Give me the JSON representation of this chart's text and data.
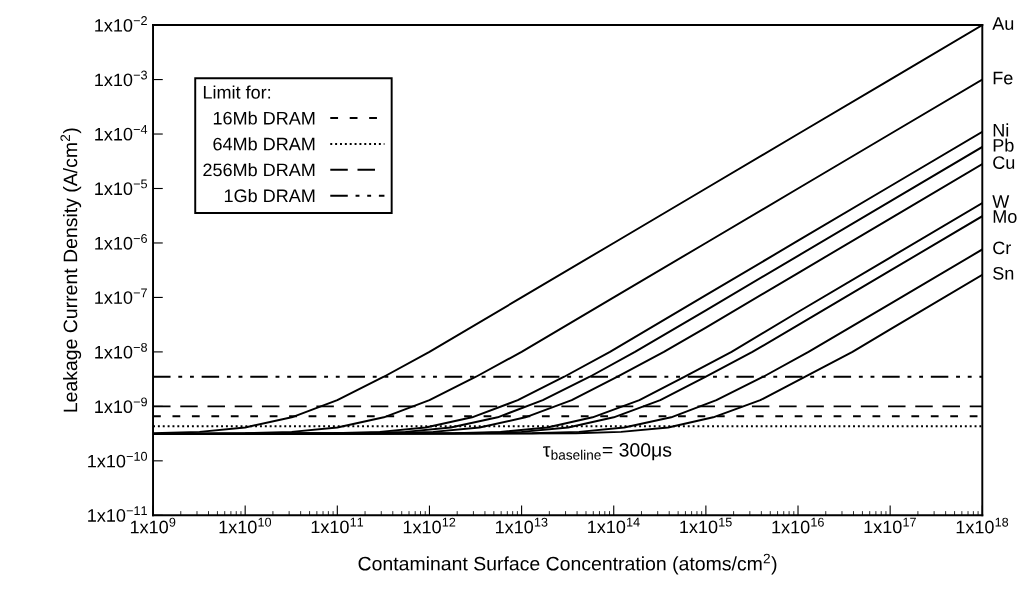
{
  "chart_data": {
    "type": "line",
    "xlabel": "Contaminant Surface Concentration (atoms/cm$^{2}$)",
    "ylabel": "Leakage Current Density (A/cm$^{2}$)",
    "log": "xy",
    "grid": false,
    "marker": "none",
    "line_style": "solid",
    "legend": "top left",
    "legend_title": "Limit for:",
    "xlim": [
      1000000000.0,
      1e+18
    ],
    "ylim": [
      1e-11,
      0.01
    ],
    "xticks": [
      {
        "value": 1000000000.0,
        "label": "1x10$^{9}$"
      },
      {
        "value": 10000000000.0,
        "label": "1x10$^{10}$"
      },
      {
        "value": 100000000000.0,
        "label": "1x10$^{11}$"
      },
      {
        "value": 1000000000000.0,
        "label": "1x10$^{12}$"
      },
      {
        "value": 10000000000000.0,
        "label": "1x10$^{13}$"
      },
      {
        "value": 100000000000000.0,
        "label": "1x10$^{14}$"
      },
      {
        "value": 1000000000000000.0,
        "label": "1x10$^{15}$"
      },
      {
        "value": 1e+16,
        "label": "1x10$^{16}$"
      },
      {
        "value": 1e+17,
        "label": "1x10$^{17}$"
      },
      {
        "value": 1e+18,
        "label": "1x10$^{18}$"
      }
    ],
    "yticks": [
      {
        "value": 1e-11,
        "label": "1x10$^{−11}$"
      },
      {
        "value": 1e-10,
        "label": "1x10$^{−10}$"
      },
      {
        "value": 1e-09,
        "label": "1x10$^{−9}$"
      },
      {
        "value": 1e-08,
        "label": "1x10$^{−8}$"
      },
      {
        "value": 1e-07,
        "label": "1x10$^{−7}$"
      },
      {
        "value": 1e-06,
        "label": "1x10$^{−6}$"
      },
      {
        "value": 1e-05,
        "label": "1x10$^{−5}$"
      },
      {
        "value": 0.0001,
        "label": "1x10$^{−4}$"
      },
      {
        "value": 0.001,
        "label": "1x10$^{−3}$"
      },
      {
        "value": 0.01,
        "label": "1x10$^{−2}$"
      }
    ],
    "series": [
      {
        "name": "Au",
        "color": "#000000",
        "x": [
          1000000000.0,
          3200000000.0,
          10000000000.0,
          32000000000.0,
          100000000000.0,
          320000000000.0,
          1000000000000.0,
          10000000000000.0,
          100000000000000.0,
          1000000000000000.0,
          1e+16,
          1e+17,
          1e+18
        ],
        "values": [
          3.2e-10,
          3.4e-10,
          4.1e-10,
          6.3e-10,
          1.3e-09,
          3.5e-09,
          1e-08,
          1e-07,
          1e-06,
          1e-05,
          0.0001,
          0.001,
          0.01
        ]
      },
      {
        "name": "Fe",
        "color": "#000000",
        "x": [
          1000000000.0,
          10000000000.0,
          32000000000.0,
          100000000000.0,
          320000000000.0,
          1000000000000.0,
          3200000000000.0,
          10000000000000.0,
          100000000000000.0,
          1000000000000000.0,
          1e+16,
          1e+17,
          1e+18
        ],
        "values": [
          3.1e-10,
          3.2e-10,
          3.4e-10,
          4.1e-10,
          6.3e-10,
          1.3e-09,
          3.5e-09,
          1e-08,
          1e-07,
          1e-06,
          1e-05,
          0.0001,
          0.001
        ]
      },
      {
        "name": "Ni",
        "color": "#000000",
        "x": [
          1000000000.0,
          91000000000.0,
          290000000000.0,
          910000000000.0,
          2900000000000.0,
          9100000000000.0,
          29000000000000.0,
          91000000000000.0,
          1000000000000000.0,
          1e+16,
          1e+17,
          1e+18
        ],
        "values": [
          3.1e-10,
          3.2e-10,
          3.4e-10,
          4.1e-10,
          6.3e-10,
          1.3e-09,
          3.5e-09,
          1e-08,
          1.1e-07,
          1.1e-06,
          1.1e-05,
          0.00011
        ]
      },
      {
        "name": "Pb",
        "color": "#000000",
        "x": [
          1000000000.0,
          170000000000.0,
          550000000000.0,
          1700000000000.0,
          5500000000000.0,
          17000000000000.0,
          55000000000000.0,
          170000000000000.0,
          1000000000000000.0,
          1e+16,
          1e+17,
          1e+18
        ],
        "values": [
          3.1e-10,
          3.2e-10,
          3.4e-10,
          4.1e-10,
          6.3e-10,
          1.3e-09,
          3.5e-09,
          1e-08,
          5.8e-08,
          5.8e-07,
          5.8e-06,
          5.8e-05
        ]
      },
      {
        "name": "Cu",
        "color": "#000000",
        "x": [
          1000000000.0,
          350000000000.0,
          1100000000000.0,
          3500000000000.0,
          11000000000000.0,
          35000000000000.0,
          110000000000000.0,
          350000000000000.0,
          1000000000000000.0,
          1e+16,
          1e+17,
          1e+18
        ],
        "values": [
          3.1e-10,
          3.2e-10,
          3.4e-10,
          4.1e-10,
          6.3e-10,
          1.3e-09,
          3.5e-09,
          1e-08,
          2.8e-08,
          2.8e-07,
          2.8e-06,
          2.8e-05
        ]
      },
      {
        "name": "W",
        "color": "#000000",
        "x": [
          1000000000.0,
          1900000000000.0,
          5900000000000.0,
          19000000000000.0,
          59000000000000.0,
          190000000000000.0,
          590000000000000.0,
          1900000000000000.0,
          1e+16,
          1e+17,
          1e+18
        ],
        "values": [
          3.1e-10,
          3.2e-10,
          3.4e-10,
          4.1e-10,
          6.3e-10,
          1.3e-09,
          3.5e-09,
          1e-08,
          5.4e-08,
          5.4e-07,
          5.4e-06
        ]
      },
      {
        "name": "Mo",
        "color": "#000000",
        "x": [
          1000000000.0,
          3200000000000.0,
          10000000000000.0,
          32000000000000.0,
          100000000000000.0,
          320000000000000.0,
          1000000000000000.0,
          3200000000000000.0,
          1e+16,
          1e+17,
          1e+18
        ],
        "values": [
          3.1e-10,
          3.2e-10,
          3.4e-10,
          4.1e-10,
          6.3e-10,
          1.3e-09,
          3.5e-09,
          1e-08,
          3.1e-08,
          3.1e-07,
          3.1e-06
        ]
      },
      {
        "name": "Cr",
        "color": "#000000",
        "x": [
          1000000000.0,
          13000000000000.0,
          42000000000000.0,
          130000000000000.0,
          420000000000000.0,
          1300000000000000.0,
          4200000000000000.0,
          1.3e+16,
          1e+17,
          1e+18
        ],
        "values": [
          3.1e-10,
          3.2e-10,
          3.4e-10,
          4.1e-10,
          6.3e-10,
          1.3e-09,
          3.5e-09,
          1e-08,
          7.6e-08,
          7.6e-07
        ]
      },
      {
        "name": "Sn",
        "color": "#000000",
        "x": [
          1000000000.0,
          39000000000000.0,
          120000000000000.0,
          390000000000000.0,
          1200000000000000.0,
          3900000000000000.0,
          1.2e+16,
          3.9e+16,
          1e+17,
          1e+18
        ],
        "values": [
          3.1e-10,
          3.2e-10,
          3.4e-10,
          4.1e-10,
          6.3e-10,
          1.3e-09,
          3.5e-09,
          1e-08,
          2.6e-08,
          2.6e-07
        ]
      }
    ],
    "ref_lines": [
      {
        "axis": "y",
        "value": 6.6e-10,
        "label": "16Mb DRAM",
        "color": "#000000",
        "line_style": "dashed"
      },
      {
        "axis": "y",
        "value": 4.3e-10,
        "label": "64Mb DRAM",
        "color": "#000000",
        "line_style": "dotted"
      },
      {
        "axis": "y",
        "value": 1e-09,
        "label": "256Mb DRAM",
        "color": "#000000",
        "line_style": "longdash"
      },
      {
        "axis": "y",
        "value": 3.5e-09,
        "label": "1Gb DRAM",
        "color": "#000000",
        "line_style": "dashdotdot"
      }
    ],
    "annotations": [
      "τ$_{baseline}$= 300μs"
    ]
  }
}
